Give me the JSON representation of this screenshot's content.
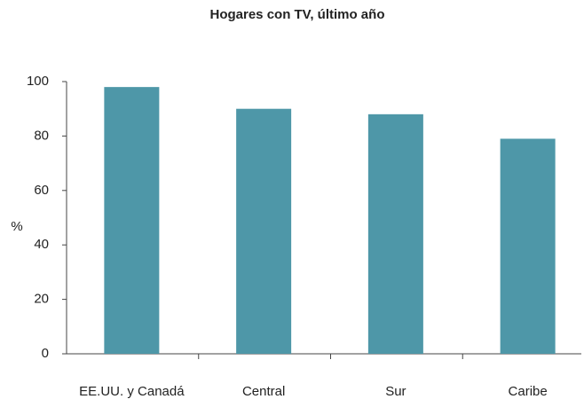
{
  "chart_data": {
    "type": "bar",
    "title": "Hogares con TV, último año",
    "y_label": "%",
    "categories": [
      "EE.UU. y Canadá",
      "Central",
      "Sur",
      "Caribe"
    ],
    "values": [
      98,
      90,
      88,
      79
    ],
    "color": "#4e97a8",
    "ylim": [
      0,
      100
    ],
    "yticks": [
      0,
      20,
      40,
      60,
      80,
      100
    ],
    "grid": false
  }
}
